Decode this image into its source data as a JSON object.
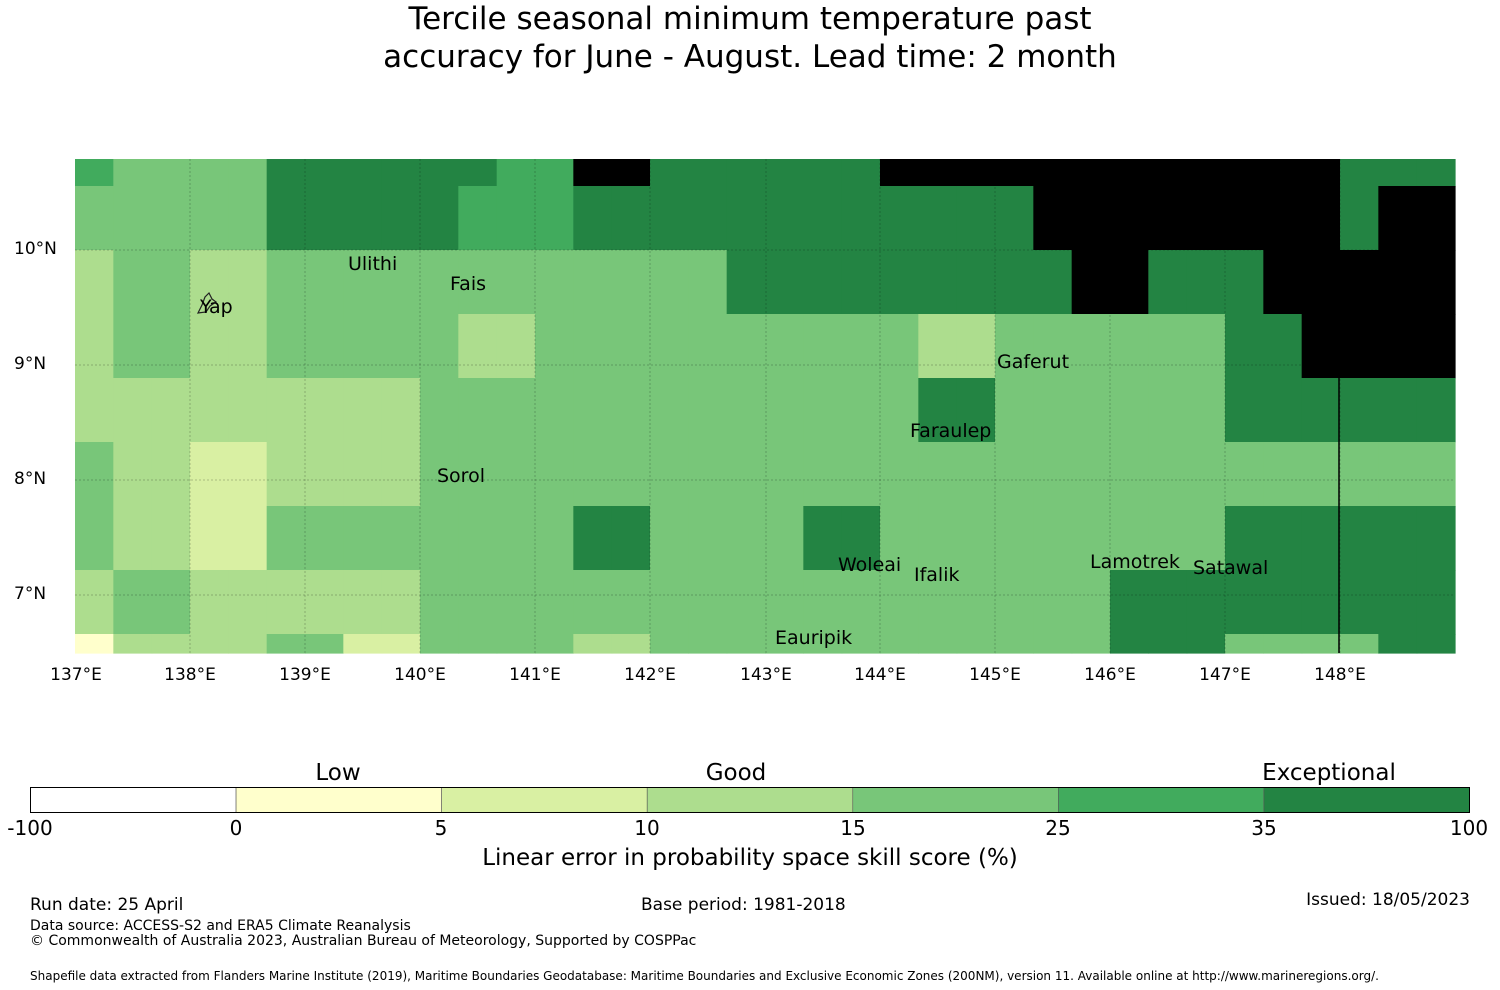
{
  "title_line1": "Tercile seasonal minimum temperature past",
  "title_line2": "accuracy for June - August. Lead time: 2 month",
  "lat_labels": [
    "10°N",
    "9°N",
    "8°N",
    "7°N"
  ],
  "lon_labels": [
    "137°E",
    "138°E",
    "139°E",
    "140°E",
    "141°E",
    "142°E",
    "143°E",
    "144°E",
    "145°E",
    "146°E",
    "147°E",
    "148°E"
  ],
  "places": [
    "Ulithi",
    "Fais",
    "Yap",
    "Gaferut",
    "Faraulep",
    "Sorol",
    "Woleai",
    "Ifalik",
    "Lamotrek",
    "Satawal",
    "Eauripik"
  ],
  "colorbar": {
    "categories": [
      "Low",
      "Good",
      "Exceptional"
    ],
    "ticks": [
      "-100",
      "0",
      "5",
      "10",
      "15",
      "25",
      "35",
      "100"
    ],
    "colors": [
      "#ffffff",
      "#ffffcc",
      "#d9f0a3",
      "#addd8e",
      "#78c679",
      "#41ab5d",
      "#238443"
    ],
    "label": "Linear error in probability space skill score (%)"
  },
  "map_grid": {
    "legend": [
      "#ffffcc",
      "#d9f0a3",
      "#addd8e",
      "#78c679",
      "#41ab5d",
      "#238443"
    ],
    "rows": [
      [
        4,
        3,
        3,
        3,
        3,
        5,
        5,
        5,
        5,
        5,
        5,
        4,
        4,
        6,
        6,
        5,
        5,
        5,
        5,
        5,
        5,
        6,
        6,
        6,
        6,
        6,
        6,
        6,
        6,
        6,
        6,
        6,
        6,
        5,
        5,
        5
      ],
      [
        3,
        3,
        3,
        3,
        3,
        5,
        5,
        5,
        5,
        5,
        4,
        4,
        4,
        5,
        5,
        5,
        5,
        5,
        5,
        5,
        5,
        5,
        5,
        5,
        5,
        6,
        6,
        6,
        6,
        6,
        6,
        6,
        6,
        5,
        6,
        6
      ],
      [
        2,
        3,
        3,
        2,
        2,
        3,
        3,
        3,
        3,
        3,
        3,
        3,
        3,
        3,
        3,
        3,
        3,
        5,
        5,
        5,
        5,
        5,
        5,
        5,
        5,
        5,
        6,
        6,
        5,
        5,
        5,
        6,
        6,
        6,
        6,
        6
      ],
      [
        2,
        3,
        3,
        2,
        2,
        3,
        3,
        3,
        3,
        3,
        2,
        2,
        3,
        3,
        3,
        3,
        3,
        3,
        3,
        3,
        3,
        3,
        2,
        2,
        3,
        3,
        3,
        3,
        3,
        3,
        5,
        5,
        6,
        6,
        6,
        6
      ],
      [
        2,
        2,
        2,
        2,
        2,
        2,
        2,
        2,
        2,
        3,
        3,
        3,
        3,
        3,
        3,
        3,
        3,
        3,
        3,
        3,
        3,
        3,
        5,
        5,
        3,
        3,
        3,
        3,
        3,
        3,
        5,
        5,
        5,
        5,
        5,
        5
      ],
      [
        3,
        2,
        2,
        1,
        1,
        2,
        2,
        2,
        2,
        3,
        3,
        3,
        3,
        3,
        3,
        3,
        3,
        3,
        3,
        3,
        3,
        3,
        3,
        3,
        3,
        3,
        3,
        3,
        3,
        3,
        3,
        3,
        3,
        3,
        3,
        3
      ],
      [
        3,
        2,
        2,
        1,
        1,
        3,
        3,
        3,
        3,
        3,
        3,
        3,
        3,
        5,
        5,
        3,
        3,
        3,
        3,
        5,
        5,
        3,
        3,
        3,
        3,
        3,
        3,
        3,
        3,
        3,
        5,
        5,
        5,
        5,
        5,
        5
      ],
      [
        2,
        3,
        3,
        2,
        2,
        2,
        2,
        2,
        2,
        3,
        3,
        3,
        3,
        3,
        3,
        3,
        3,
        3,
        3,
        3,
        3,
        3,
        3,
        3,
        3,
        3,
        3,
        5,
        5,
        5,
        5,
        5,
        5,
        5,
        5,
        5
      ],
      [
        0,
        2,
        2,
        2,
        2,
        3,
        3,
        1,
        1,
        3,
        3,
        3,
        3,
        2,
        2,
        3,
        3,
        3,
        3,
        3,
        3,
        3,
        3,
        3,
        3,
        3,
        3,
        5,
        5,
        5,
        3,
        3,
        3,
        3,
        5,
        5
      ]
    ]
  },
  "footer": {
    "run_date": "Run date: 25 April",
    "base_period": "Base period: 1981-2018",
    "issued": "Issued: 18/05/2023",
    "data_source": "Data source: ACCESS-S2 and ERA5 Climate Reanalysis",
    "copyright": "© Commonwealth of Australia 2023, Australian Bureau of Meteorology, Supported by COSPPac",
    "shapefile": "Shapefile data extracted from Flanders Marine Institute (2019), Maritime Boundaries Geodatabase: Maritime Boundaries and Exclusive Economic Zones (200NM), version 11. Available online at http://www.marineregions.org/."
  }
}
